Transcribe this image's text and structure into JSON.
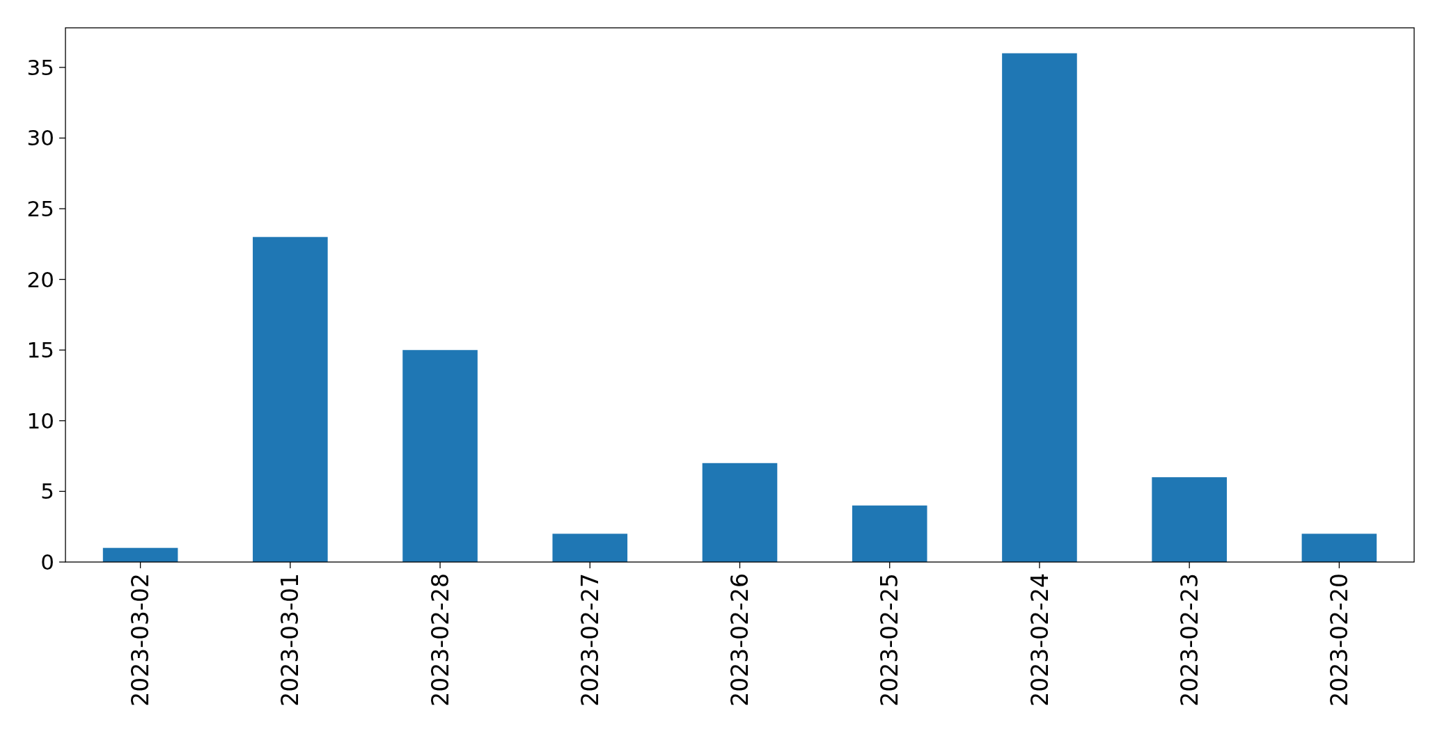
{
  "chart_data": {
    "type": "bar",
    "categories": [
      "2023-03-02",
      "2023-03-01",
      "2023-02-28",
      "2023-02-27",
      "2023-02-26",
      "2023-02-25",
      "2023-02-24",
      "2023-02-23",
      "2023-02-20"
    ],
    "values": [
      1,
      23,
      15,
      2,
      7,
      4,
      36,
      6,
      2
    ],
    "color": "#1f77b4",
    "ylim": [
      0,
      37.8
    ],
    "yticks": [
      0,
      5,
      10,
      15,
      20,
      25,
      30,
      35
    ],
    "grid": false
  }
}
